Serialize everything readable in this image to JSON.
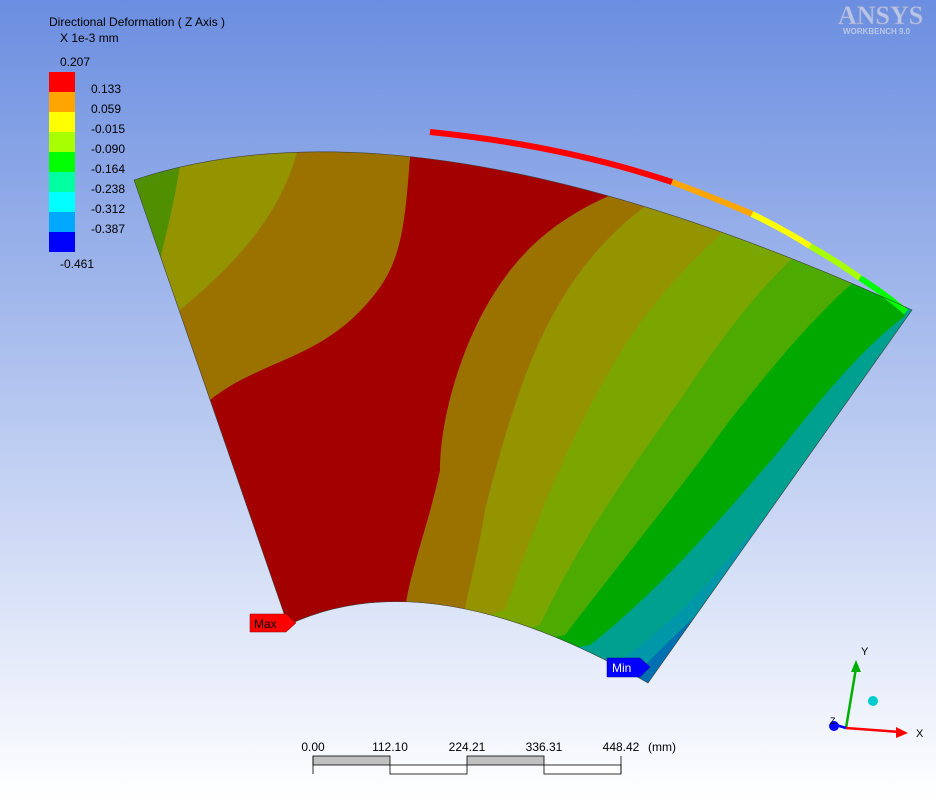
{
  "background": {
    "top_color": "#6b8ee0",
    "bottom_color": "#ffffff"
  },
  "legend": {
    "title": "Directional Deformation ( Z Axis )",
    "unit": "X 1e-3 mm",
    "max_label": "0.207",
    "min_label": "-0.461",
    "levels": [
      {
        "label": "0.133",
        "color": "#ff0000"
      },
      {
        "label": "0.059",
        "color": "#ffa500"
      },
      {
        "label": "-0.015",
        "color": "#ffff00"
      },
      {
        "label": "-0.090",
        "color": "#a8ff00"
      },
      {
        "label": "-0.164",
        "color": "#00ff00"
      },
      {
        "label": "-0.238",
        "color": "#00ffa0"
      },
      {
        "label": "-0.312",
        "color": "#00ffff"
      },
      {
        "label": "-0.387",
        "color": "#00a8ff"
      },
      {
        "label": "",
        "color": "#0000ff"
      }
    ]
  },
  "logo": {
    "brand": "ANSYS",
    "product": "WORKBENCH 9.0"
  },
  "markers": {
    "max_label": "Max",
    "min_label": "Min",
    "max_color": "#ff0000",
    "min_color": "#0000ff"
  },
  "scale_bar": {
    "ticks": [
      "0.00",
      "112.10",
      "224.21",
      "336.31",
      "448.42"
    ],
    "unit": "(mm)"
  },
  "triad": {
    "x_label": "X",
    "y_label": "Y",
    "z_label": "Z",
    "x_color": "#ff0000",
    "y_color": "#00b000",
    "z_color": "#0000ff",
    "iso_color": "#00cccc"
  },
  "contour_colors": [
    "#4f8f00",
    "#949400",
    "#9b7200",
    "#a30000",
    "#9b7200",
    "#949400",
    "#7ba600",
    "#4caa00",
    "#00a800",
    "#00a090",
    "#0098a8",
    "#0070b0",
    "#003080",
    "#0000a0"
  ]
}
